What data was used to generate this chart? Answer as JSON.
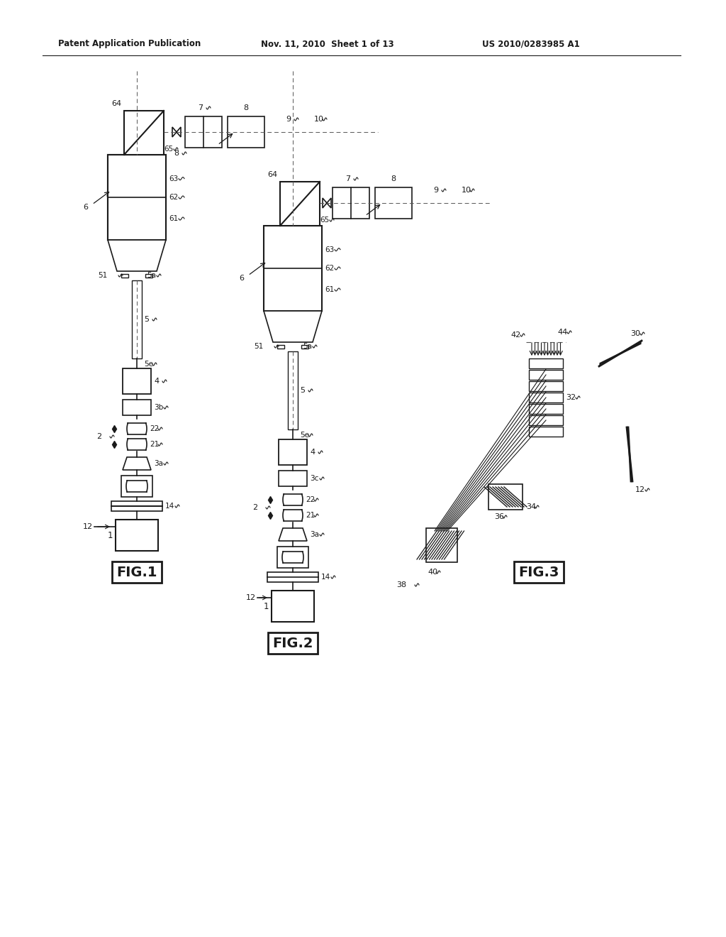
{
  "bg_color": "#ffffff",
  "header_left": "Patent Application Publication",
  "header_mid": "Nov. 11, 2010  Sheet 1 of 13",
  "header_right": "US 2010/0283985 A1",
  "fig1_label": "FIG.1",
  "fig2_label": "FIG.2",
  "fig3_label": "FIG.3",
  "line_color": "#1a1a1a",
  "text_color": "#1a1a1a"
}
